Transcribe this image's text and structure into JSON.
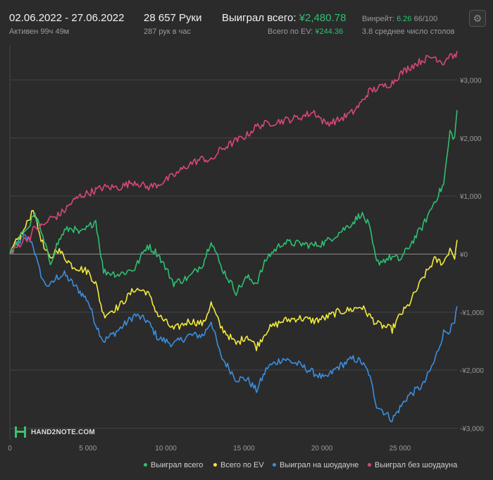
{
  "header": {
    "date_range": "02.06.2022 - 27.06.2022",
    "active": "Активен 99ч 49м",
    "hands": "28 657 Руки",
    "hands_per_hour": "287 рук в час",
    "won_label": "Выиграл всего:",
    "won_value": "¥2,480.78",
    "ev_label": "Всего по EV:",
    "ev_value": "¥244.36",
    "winrate_label": "Винрейт:",
    "winrate_value": "6.26",
    "winrate_suffix": "66/100",
    "tables": "3.8 среднее число столов",
    "settings_icon": "gear-icon"
  },
  "logo": {
    "text": "HAND2NOTE.COM"
  },
  "colors": {
    "green": "#2fbf71",
    "yellow": "#f2ea3c",
    "blue": "#3a8fe0",
    "pink": "#d8477a",
    "background": "#2b2b2b"
  },
  "chart_data": {
    "type": "line",
    "x_ticks": [
      "0",
      "5 000",
      "10 000",
      "15 000",
      "20 000",
      "25 000"
    ],
    "y_ticks": [
      "¥3,000",
      "¥2,000",
      "¥1,000",
      "¥0",
      "-¥1,000",
      "-¥2,000",
      "-¥3,000"
    ],
    "xlim": [
      0,
      28657
    ],
    "ylim": [
      -3200,
      3600
    ],
    "grid": true,
    "legend_position": "bottom-right",
    "series": [
      {
        "name": "Выиграл всего",
        "color": "#2fbf71",
        "x": [
          0,
          400,
          900,
          1300,
          1500,
          1800,
          2200,
          2600,
          3000,
          3500,
          4000,
          4500,
          5000,
          5500,
          6000,
          7000,
          8000,
          8800,
          9500,
          10500,
          11500,
          12400,
          12900,
          13500,
          14500,
          15200,
          15800,
          16500,
          17500,
          18500,
          19500,
          20200,
          21000,
          22000,
          22500,
          23000,
          23500,
          24500,
          25000,
          25500,
          26500,
          27200,
          27800,
          28200,
          28500,
          28657
        ],
        "y": [
          0,
          150,
          400,
          500,
          700,
          550,
          200,
          -150,
          150,
          400,
          450,
          350,
          450,
          580,
          -300,
          -350,
          -250,
          150,
          0,
          -500,
          -400,
          -150,
          250,
          -200,
          -650,
          -400,
          -500,
          -50,
          200,
          180,
          150,
          200,
          350,
          550,
          700,
          500,
          -150,
          -50,
          -100,
          100,
          500,
          900,
          1200,
          2100,
          2000,
          2480
        ]
      },
      {
        "name": "Всего по EV",
        "color": "#f2ea3c",
        "x": [
          0,
          400,
          900,
          1300,
          1500,
          1800,
          2200,
          2600,
          3000,
          3500,
          4000,
          4500,
          5000,
          5500,
          6000,
          7000,
          8000,
          8800,
          9500,
          10500,
          11500,
          12400,
          12900,
          13500,
          14500,
          15200,
          15800,
          16500,
          17500,
          18500,
          19500,
          20200,
          21000,
          22000,
          22500,
          23000,
          23500,
          24500,
          25000,
          25500,
          26500,
          27200,
          27800,
          28200,
          28500,
          28657
        ],
        "y": [
          0,
          200,
          400,
          650,
          800,
          450,
          100,
          -100,
          100,
          -50,
          -200,
          -250,
          -300,
          -500,
          -1050,
          -900,
          -600,
          -650,
          -1050,
          -1300,
          -1150,
          -1200,
          -850,
          -1250,
          -1550,
          -1400,
          -1600,
          -1300,
          -1150,
          -1100,
          -1150,
          -1100,
          -1000,
          -950,
          -900,
          -1050,
          -1200,
          -1300,
          -1050,
          -900,
          -400,
          -100,
          -150,
          100,
          -50,
          244
        ]
      },
      {
        "name": "Выиграл на шоудауне",
        "color": "#3a8fe0",
        "x": [
          0,
          400,
          900,
          1300,
          1500,
          1800,
          2200,
          2600,
          3000,
          3500,
          4000,
          4500,
          5000,
          5500,
          6000,
          7000,
          8000,
          8800,
          9500,
          10500,
          11500,
          12400,
          12900,
          13500,
          14500,
          15200,
          15800,
          16500,
          17500,
          18500,
          19500,
          20200,
          21000,
          22000,
          22500,
          23000,
          23500,
          24500,
          25000,
          25500,
          26500,
          27200,
          27800,
          28200,
          28500,
          28657
        ],
        "y": [
          0,
          150,
          300,
          250,
          150,
          -200,
          -500,
          -550,
          -400,
          -350,
          -500,
          -650,
          -800,
          -1200,
          -1500,
          -1300,
          -1050,
          -1150,
          -1450,
          -1550,
          -1400,
          -1400,
          -1150,
          -1750,
          -2150,
          -2150,
          -2350,
          -1950,
          -1800,
          -1900,
          -2050,
          -2150,
          -1950,
          -1800,
          -1850,
          -2050,
          -2600,
          -2850,
          -2650,
          -2450,
          -2250,
          -1850,
          -1350,
          -1300,
          -1200,
          -900
        ]
      },
      {
        "name": "Выиграл без шоудауна",
        "color": "#d8477a",
        "x": [
          0,
          400,
          900,
          1300,
          1500,
          1800,
          2200,
          2600,
          3000,
          3500,
          4000,
          4500,
          5000,
          5500,
          6000,
          7000,
          8000,
          8800,
          9500,
          10500,
          11500,
          12400,
          12900,
          13500,
          14500,
          15200,
          15800,
          16500,
          17500,
          18500,
          19500,
          20200,
          21000,
          22000,
          22500,
          23000,
          23500,
          24500,
          25000,
          25500,
          26500,
          27200,
          27800,
          28200,
          28500,
          28657
        ],
        "y": [
          0,
          100,
          250,
          300,
          420,
          450,
          500,
          620,
          650,
          750,
          900,
          1000,
          1050,
          1100,
          1150,
          1150,
          1250,
          1150,
          1200,
          1350,
          1550,
          1650,
          1600,
          1800,
          1950,
          2050,
          2200,
          2250,
          2300,
          2350,
          2450,
          2250,
          2300,
          2450,
          2600,
          2800,
          2850,
          2950,
          3100,
          3200,
          3350,
          3400,
          3300,
          3450,
          3400,
          3500
        ]
      }
    ]
  },
  "legend": [
    {
      "label": "Выиграл всего",
      "color": "#2fbf71"
    },
    {
      "label": "Всего по EV",
      "color": "#f2ea3c"
    },
    {
      "label": "Выиграл на шоудауне",
      "color": "#3a8fe0"
    },
    {
      "label": "Выиграл без шоудауна",
      "color": "#d8477a"
    }
  ]
}
